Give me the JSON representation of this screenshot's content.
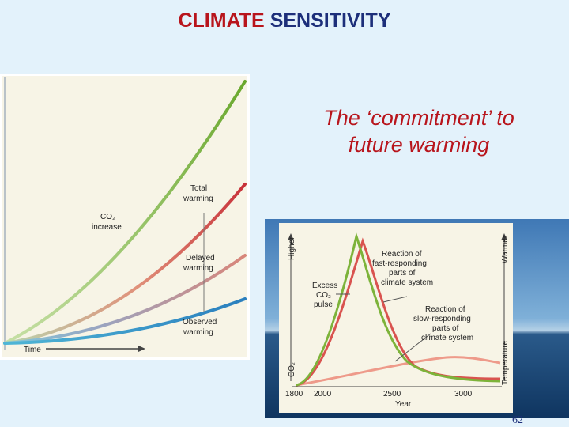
{
  "slide": {
    "title_part1": "CLIMATE",
    "title_part2": "SENSITIVITY",
    "subtitle_line1": "The ‘commitment’ to",
    "subtitle_line2": "future warming",
    "page_number": "62"
  },
  "left_diagram": {
    "labels": {
      "co2_line1": "CO₂",
      "co2_line2": "increase",
      "total_line1": "Total",
      "total_line2": "warming",
      "delayed_line1": "Delayed",
      "delayed_line2": "warming",
      "observed_line1": "Observed",
      "observed_line2": "warming",
      "time_axis": "Time"
    },
    "colors": {
      "co2": "#7db33a",
      "total": "#cc3333",
      "observed": "#3a9fcf"
    }
  },
  "right_diagram": {
    "labels": {
      "fast_line1": "Reaction of",
      "fast_line2": "fast-responding",
      "fast_line3": "parts of",
      "fast_line4": "climate system",
      "slow_line1": "Reaction of",
      "slow_line2": "slow-responding",
      "slow_line3": "parts of",
      "slow_line4": "climate system",
      "excess_line1": "Excess",
      "excess_line2": "CO₂",
      "excess_line3": "pulse",
      "higher": "Higher",
      "co2_axis": "CO₂",
      "warmer": "Warmer",
      "temperature": "Temperature",
      "year_axis": "Year"
    },
    "ticks": [
      "1800",
      "2000",
      "2500",
      "3000"
    ],
    "colors": {
      "co2": "#7db33a",
      "fast": "#d9534f",
      "slow": "#ee9a8a"
    }
  }
}
